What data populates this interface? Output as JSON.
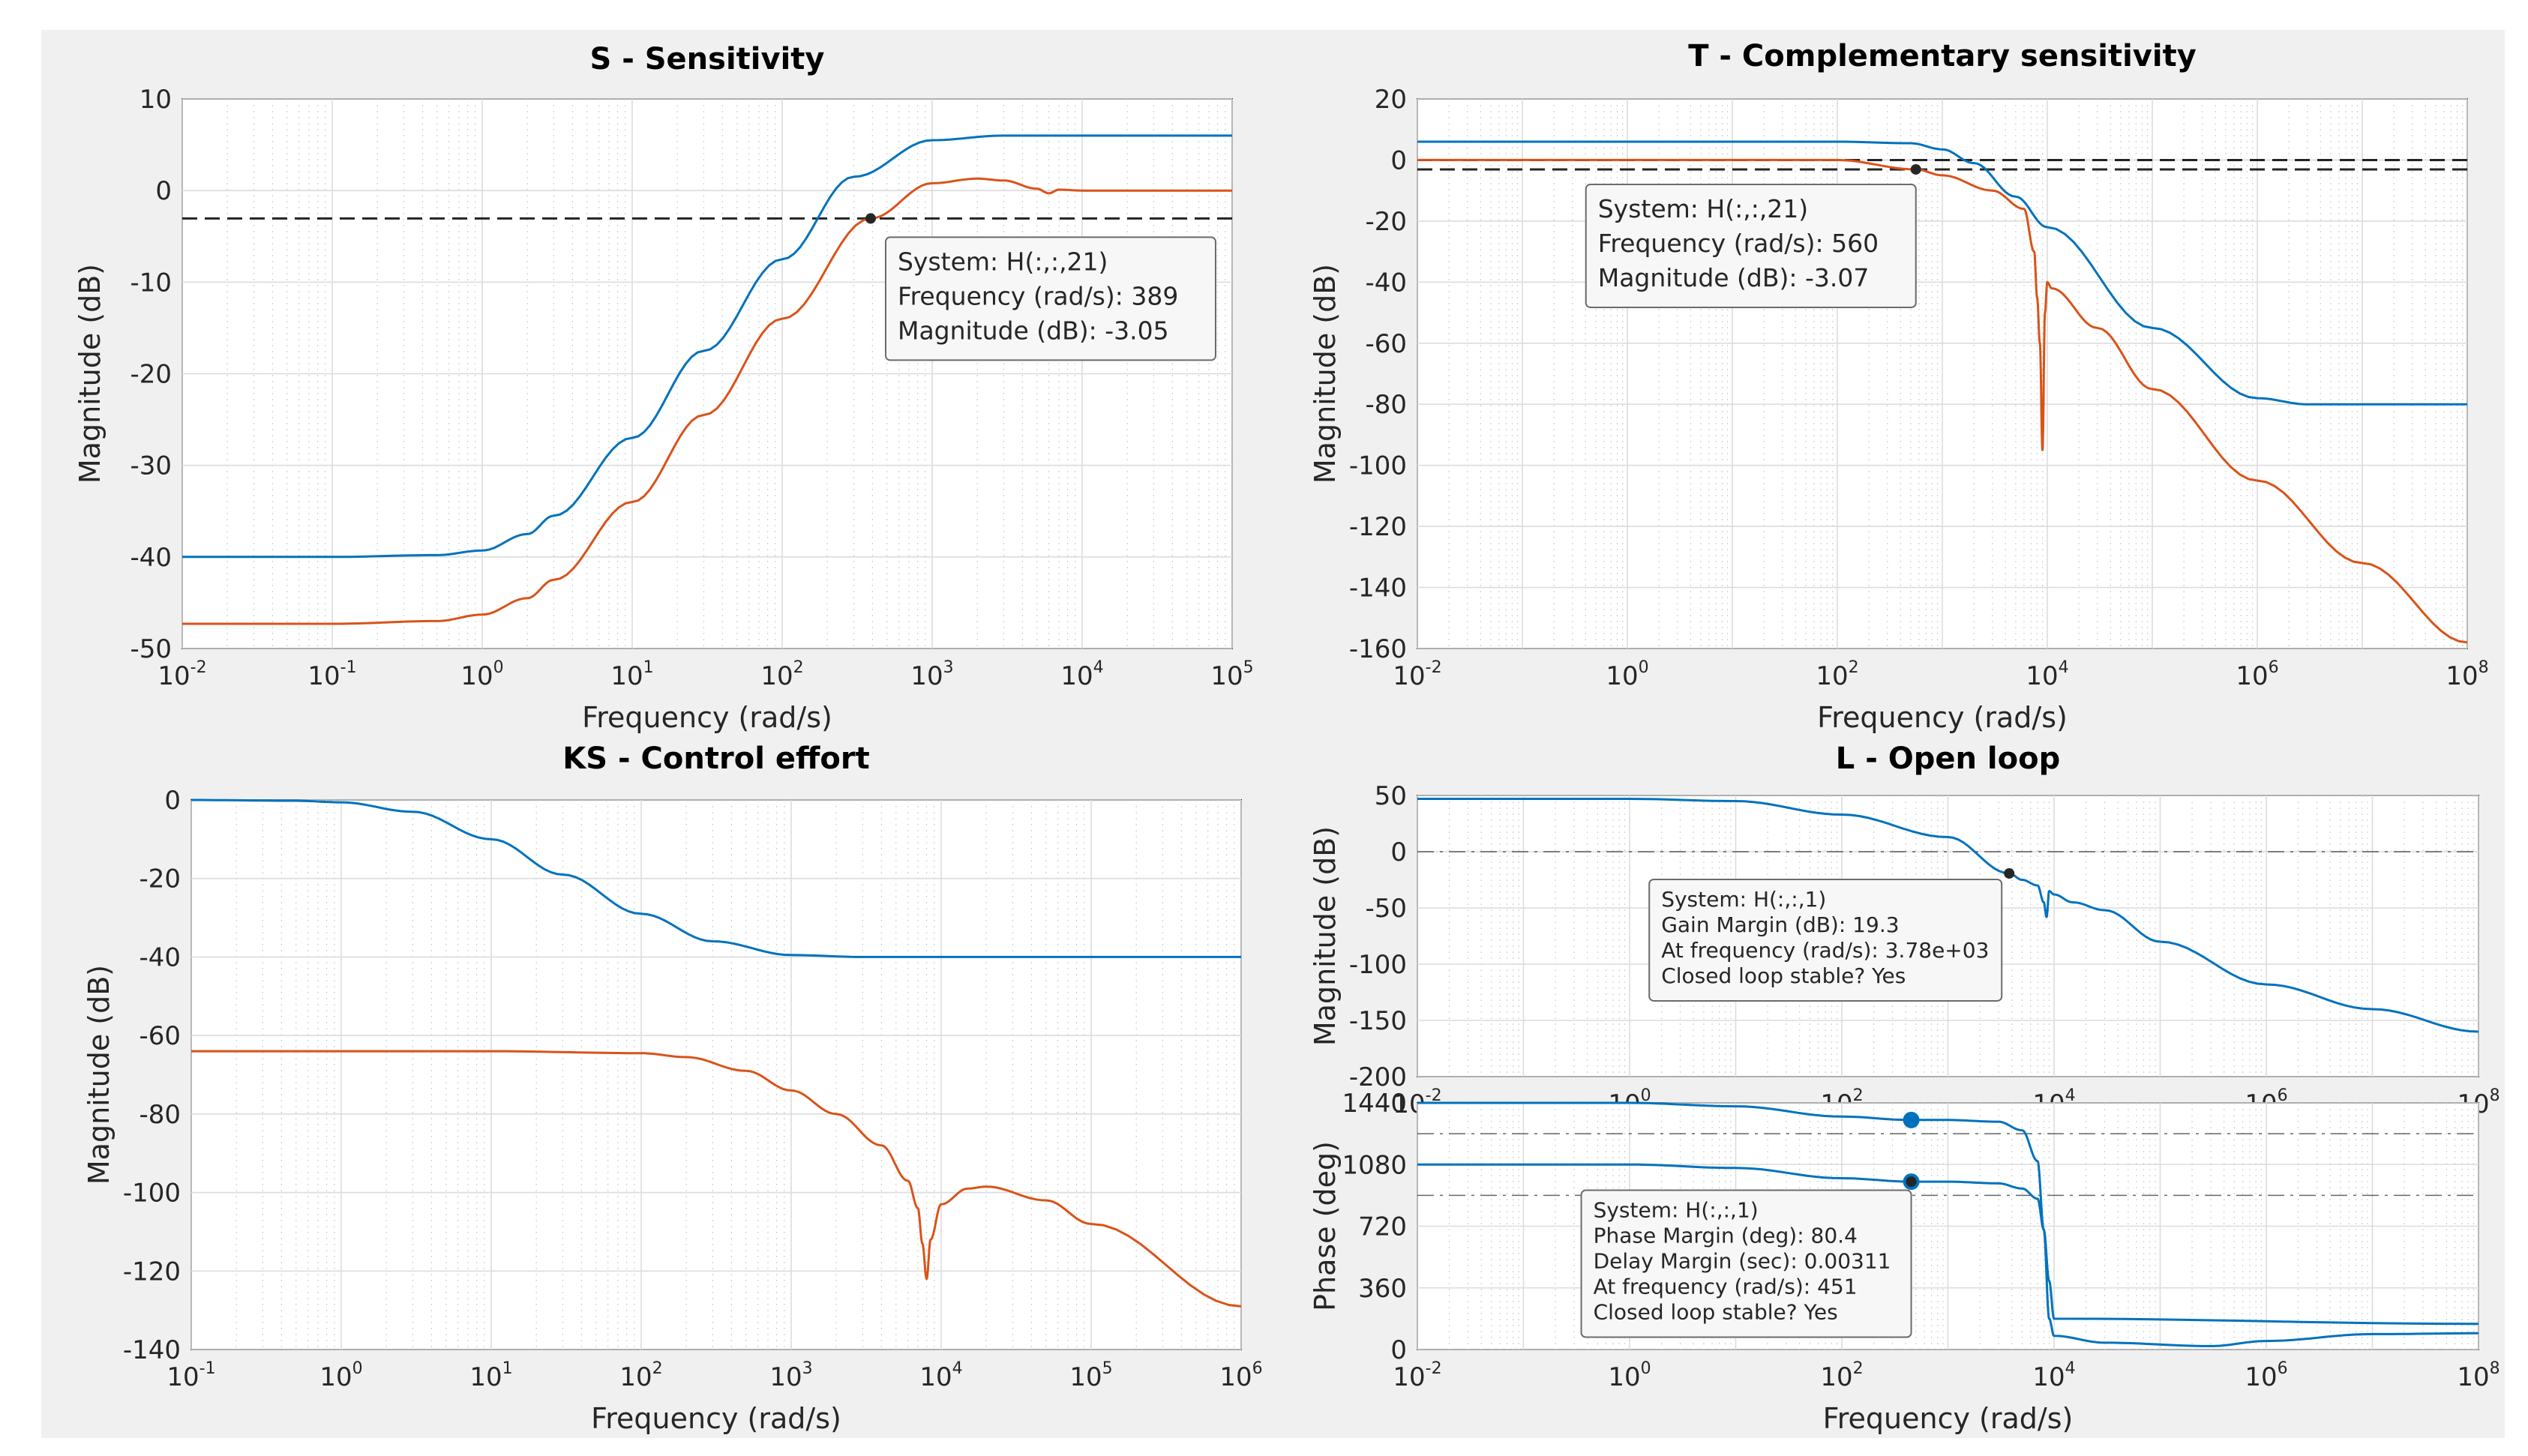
{
  "figure": {
    "background": "#f0f0f0"
  },
  "colors": {
    "blue": "#0072bd",
    "orange": "#d95319",
    "marker_blue": "#0072bd",
    "ref_line": "#000000"
  },
  "chart_data": [
    {
      "id": "S",
      "type": "line",
      "title": "S - Sensitivity",
      "xlabel": "Frequency  (rad/s)",
      "ylabel": "Magnitude (dB)",
      "xscale": "log",
      "xlim": [
        0.01,
        100000
      ],
      "ylim": [
        -50,
        10
      ],
      "yticks": [
        10,
        0,
        -10,
        -20,
        -30,
        -40,
        -50
      ],
      "xtick_exponents": [
        -2,
        -1,
        0,
        1,
        2,
        3,
        4,
        5
      ],
      "grid": true,
      "reference_lines": [
        {
          "y": -3.05,
          "style": "dashed"
        }
      ],
      "series": [
        {
          "name": "S (blue)",
          "color": "blue",
          "x": [
            0.01,
            0.1,
            0.5,
            1,
            2,
            3,
            10,
            30,
            100,
            300,
            1000,
            3000,
            10000,
            100000
          ],
          "y": [
            -40,
            -40,
            -39.8,
            -39.3,
            -37.5,
            -35.5,
            -27,
            -17.5,
            -7.5,
            1.5,
            5.5,
            6,
            6,
            6
          ]
        },
        {
          "name": "S (orange)",
          "color": "orange",
          "x": [
            0.01,
            0.1,
            0.5,
            1,
            2,
            3,
            10,
            30,
            100,
            389,
            1000,
            2000,
            3000,
            5000,
            6000,
            7000,
            10000,
            100000
          ],
          "y": [
            -47.3,
            -47.3,
            -47,
            -46.3,
            -44.5,
            -42.5,
            -34,
            -24.5,
            -14,
            -3.05,
            0.8,
            1.3,
            1.1,
            0.2,
            -0.3,
            0.1,
            0,
            0
          ]
        }
      ],
      "datatip": {
        "marker_x": 389,
        "marker_y": -3.05,
        "lines": [
          "System: H(:,:,21)",
          "Frequency (rad/s): 389",
          "Magnitude (dB): -3.05"
        ]
      }
    },
    {
      "id": "T",
      "type": "line",
      "title": "T - Complementary sensitivity",
      "xlabel": "Frequency  (rad/s)",
      "ylabel": "Magnitude (dB)",
      "xscale": "log",
      "xlim": [
        0.01,
        100000000
      ],
      "ylim": [
        -160,
        20
      ],
      "yticks": [
        20,
        0,
        -20,
        -40,
        -60,
        -80,
        -100,
        -120,
        -140,
        -160
      ],
      "xtick_exponents": [
        -2,
        0,
        2,
        4,
        6,
        8
      ],
      "grid": true,
      "reference_lines": [
        {
          "y": 0,
          "style": "dashed"
        },
        {
          "y": -3.07,
          "style": "dashed"
        }
      ],
      "series": [
        {
          "name": "T (blue)",
          "color": "blue",
          "x": [
            0.01,
            100,
            500,
            1000,
            2000,
            5000,
            10000,
            100000,
            1000000,
            3000000,
            100000000
          ],
          "y": [
            6,
            6,
            5.5,
            3.5,
            -1,
            -12,
            -22,
            -55,
            -78,
            -80,
            -80
          ]
        },
        {
          "name": "T (orange)",
          "color": "orange",
          "x": [
            0.01,
            100,
            560,
            1000,
            3000,
            6000,
            7500,
            8000,
            8500,
            9000,
            9500,
            10000,
            11000,
            30000,
            100000,
            1000000,
            10000000,
            100000000
          ],
          "y": [
            0,
            0,
            -3.07,
            -5,
            -10,
            -16,
            -30,
            -45,
            -60,
            -95,
            -50,
            -40,
            -42,
            -55,
            -75,
            -105,
            -132,
            -158
          ]
        }
      ],
      "datatip": {
        "marker_x": 560,
        "marker_y": -3.07,
        "lines": [
          "System: H(:,:,21)",
          "Frequency (rad/s): 560",
          "Magnitude (dB): -3.07"
        ]
      }
    },
    {
      "id": "KS",
      "type": "line",
      "title": "KS - Control effort",
      "xlabel": "Frequency  (rad/s)",
      "ylabel": "Magnitude (dB)",
      "xscale": "log",
      "xlim": [
        0.1,
        1000000
      ],
      "ylim": [
        -140,
        0
      ],
      "yticks": [
        0,
        -20,
        -40,
        -60,
        -80,
        -100,
        -120,
        -140
      ],
      "xtick_exponents": [
        -1,
        0,
        1,
        2,
        3,
        4,
        5,
        6
      ],
      "grid": true,
      "series": [
        {
          "name": "KS (blue)",
          "color": "blue",
          "x": [
            0.1,
            0.5,
            1,
            3,
            10,
            30,
            100,
            300,
            1000,
            3000,
            10000,
            1000000
          ],
          "y": [
            0,
            -0.2,
            -0.6,
            -3,
            -10,
            -19,
            -29,
            -36,
            -39.5,
            -40,
            -40,
            -40
          ]
        },
        {
          "name": "KS (orange)",
          "color": "orange",
          "x": [
            0.1,
            10,
            100,
            200,
            500,
            1000,
            2000,
            4000,
            6000,
            7000,
            7500,
            8000,
            8500,
            10000,
            15000,
            20000,
            50000,
            100000,
            1000000
          ],
          "y": [
            -64,
            -64,
            -64.5,
            -65.5,
            -69,
            -74,
            -80,
            -88,
            -97,
            -104,
            -113,
            -122,
            -112,
            -103,
            -99,
            -98.5,
            -102,
            -108,
            -129
          ]
        }
      ]
    },
    {
      "id": "L-mag",
      "type": "line",
      "title": "L - Open loop",
      "xlabel": "",
      "ylabel": "Magnitude (dB)",
      "xscale": "log",
      "xlim": [
        0.01,
        100000000
      ],
      "ylim": [
        -200,
        50
      ],
      "yticks": [
        50,
        0,
        -50,
        -100,
        -150,
        -200
      ],
      "xtick_exponents": [
        -2,
        0,
        2,
        4,
        6,
        8
      ],
      "grid": true,
      "reference_lines": [
        {
          "y": 0,
          "style": "dashdot"
        }
      ],
      "series": [
        {
          "name": "L magnitude",
          "color": "blue",
          "x": [
            0.01,
            1,
            10,
            100,
            1000,
            3780,
            5000,
            7000,
            8000,
            8500,
            9000,
            10000,
            15000,
            30000,
            100000,
            1000000,
            10000000,
            100000000
          ],
          "y": [
            47,
            47,
            45,
            33,
            13,
            -19.3,
            -25,
            -30,
            -45,
            -58,
            -35,
            -38,
            -45,
            -52,
            -80,
            -118,
            -140,
            -160
          ]
        }
      ],
      "datatip": {
        "marker_x": 3780,
        "marker_y": -19.3,
        "lines": [
          "System: H(:,:,1)",
          "Gain Margin (dB): 19.3",
          "At frequency (rad/s): 3.78e+03",
          "Closed loop stable? Yes"
        ]
      }
    },
    {
      "id": "L-phase",
      "type": "line",
      "title": "",
      "xlabel": "Frequency  (rad/s)",
      "ylabel": "Phase (deg)",
      "xscale": "log",
      "xlim": [
        0.01,
        100000000
      ],
      "ylim": [
        0,
        1440
      ],
      "yticks": [
        1440,
        1080,
        720,
        360,
        0
      ],
      "xtick_exponents": [
        -2,
        0,
        2,
        4,
        6,
        8
      ],
      "grid": true,
      "reference_lines": [
        {
          "y": 1260,
          "style": "dashdot"
        },
        {
          "y": 900,
          "style": "dashdot"
        }
      ],
      "series": [
        {
          "name": "L phase (upper)",
          "color": "blue",
          "x": [
            0.01,
            1,
            10,
            100,
            451,
            1000,
            3000,
            5000,
            7000,
            8000,
            9000,
            10000,
            30000,
            300000,
            1000000,
            10000000,
            100000000
          ],
          "y": [
            1440,
            1440,
            1420,
            1360,
            1340,
            1340,
            1330,
            1280,
            1100,
            700,
            180,
            80,
            40,
            20,
            50,
            90,
            95
          ]
        },
        {
          "name": "L phase (lower)",
          "color": "blue",
          "x": [
            0.01,
            1,
            10,
            100,
            451,
            1000,
            3000,
            5000,
            7000,
            8000,
            9000,
            10000,
            100000000
          ],
          "y": [
            1080,
            1080,
            1060,
            1000,
            980,
            980,
            970,
            940,
            880,
            700,
            400,
            180,
            150
          ]
        }
      ],
      "markers": [
        {
          "x": 451,
          "y": 1340
        },
        {
          "x": 451,
          "y": 980
        }
      ],
      "datatip": {
        "marker_x": 451,
        "marker_y": 980,
        "lines": [
          "System: H(:,:,1)",
          "Phase Margin (deg): 80.4",
          "Delay Margin (sec): 0.00311",
          "At frequency (rad/s): 451",
          "Closed loop stable? Yes"
        ]
      }
    }
  ]
}
